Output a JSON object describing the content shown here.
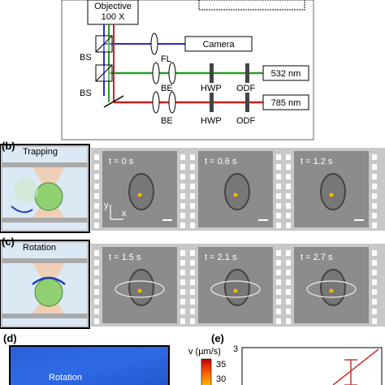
{
  "setup": {
    "objective": "Objective",
    "magnification": "100 X",
    "camera": "Camera",
    "fl": "FL",
    "bs": [
      "BS",
      "BS"
    ],
    "be": [
      "BE",
      "BE"
    ],
    "hwp": [
      "HWP",
      "HWP"
    ],
    "odf": [
      "ODF",
      "ODF"
    ],
    "lasers": [
      "532 nm",
      "785 nm"
    ]
  },
  "panels": {
    "b": {
      "label": "(b)",
      "title": "Trapping",
      "frames": [
        "t = 0 s",
        "t = 0.6 s",
        "t = 1.2 s"
      ],
      "axes": [
        "y",
        "x"
      ]
    },
    "c": {
      "label": "(c)",
      "title": "Rotation",
      "frames": [
        "t = 1.5 s",
        "t = 2.1 s",
        "t = 2.7 s"
      ]
    },
    "d": {
      "label": "(d)",
      "title": "Rotation",
      "colorbar_title": "v (µm/s)",
      "colorbar_ticks": [
        "35",
        "30"
      ]
    },
    "e": {
      "label": "(e)",
      "y_tick": "3"
    }
  }
}
